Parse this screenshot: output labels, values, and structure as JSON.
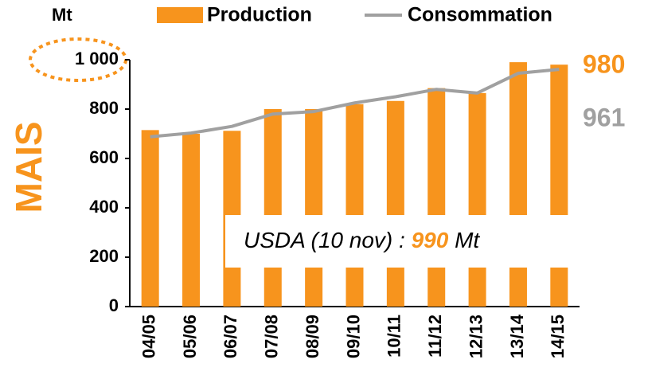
{
  "chart_data": {
    "type": "bar",
    "y_unit": "Mt",
    "y_title": "MAIS",
    "categories": [
      "04/05",
      "05/06",
      "06/07",
      "07/08",
      "08/09",
      "09/10",
      "10/11",
      "11/12",
      "12/13",
      "13/14",
      "14/15"
    ],
    "series": [
      {
        "name": "Production",
        "type": "bar",
        "color": "#f7941d",
        "values": [
          715,
          700,
          712,
          800,
          800,
          820,
          833,
          885,
          865,
          990,
          980
        ]
      },
      {
        "name": "Consommation",
        "type": "line",
        "color": "#a0a0a0",
        "values": [
          688,
          703,
          730,
          780,
          790,
          825,
          850,
          880,
          865,
          945,
          961
        ]
      }
    ],
    "ylim": [
      0,
      1000
    ],
    "yticks": [
      0,
      200,
      400,
      600,
      800,
      {
        "value": 1000,
        "label": "1 000"
      }
    ],
    "annotation": {
      "text_before": "USDA (10 nov) :",
      "highlight": "990",
      "text_after": "Mt"
    }
  }
}
